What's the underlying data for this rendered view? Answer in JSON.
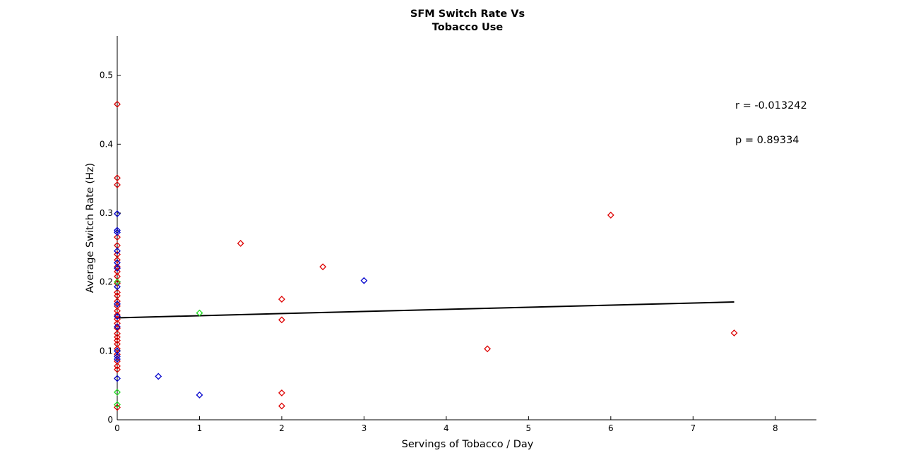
{
  "chart_data": {
    "type": "scatter",
    "title_lines": [
      "SFM Switch Rate Vs",
      "Tobacco Use"
    ],
    "xlabel": "Servings of Tobacco / Day",
    "ylabel": "Average Switch Rate (Hz)",
    "xlim": [
      0,
      8.5
    ],
    "ylim": [
      0,
      0.557
    ],
    "xticks": [
      0,
      1,
      2,
      3,
      4,
      5,
      6,
      7,
      8
    ],
    "yticks": [
      0,
      0.1,
      0.2,
      0.3,
      0.4,
      0.5
    ],
    "xtick_labels": [
      "0",
      "1",
      "2",
      "3",
      "4",
      "5",
      "6",
      "7",
      "8"
    ],
    "ytick_labels": [
      "0",
      "0.1",
      "0.2",
      "0.3",
      "0.4",
      "0.5"
    ],
    "grid": false,
    "annotations": [
      "r = -0.013242",
      "p = 0.89334"
    ],
    "trend_line": {
      "x": [
        0,
        7.5
      ],
      "y": [
        0.148,
        0.171
      ],
      "color": "#000000"
    },
    "series": [
      {
        "color": "#dd0000",
        "marker": "diamond",
        "points": [
          [
            0,
            0.458
          ],
          [
            0,
            0.351
          ],
          [
            0,
            0.341
          ],
          [
            0,
            0.265
          ],
          [
            0,
            0.253
          ],
          [
            0,
            0.24
          ],
          [
            0,
            0.232
          ],
          [
            0,
            0.222
          ],
          [
            0,
            0.215
          ],
          [
            0,
            0.208
          ],
          [
            0,
            0.198
          ],
          [
            0,
            0.185
          ],
          [
            0,
            0.18
          ],
          [
            0,
            0.172
          ],
          [
            0,
            0.165
          ],
          [
            0,
            0.158
          ],
          [
            0,
            0.152
          ],
          [
            0,
            0.146
          ],
          [
            0,
            0.14
          ],
          [
            0,
            0.133
          ],
          [
            0,
            0.125
          ],
          [
            0,
            0.12
          ],
          [
            0,
            0.115
          ],
          [
            0,
            0.11
          ],
          [
            0,
            0.103
          ],
          [
            0,
            0.095
          ],
          [
            0,
            0.085
          ],
          [
            0,
            0.078
          ],
          [
            0,
            0.073
          ],
          [
            0,
            0.018
          ],
          [
            1.5,
            0.256
          ],
          [
            2,
            0.175
          ],
          [
            2,
            0.145
          ],
          [
            2,
            0.039
          ],
          [
            2,
            0.02
          ],
          [
            2.5,
            0.222
          ],
          [
            4.5,
            0.103
          ],
          [
            6,
            0.297
          ],
          [
            7.5,
            0.126
          ]
        ]
      },
      {
        "color": "#0000cc",
        "marker": "diamond",
        "points": [
          [
            0,
            0.299
          ],
          [
            0,
            0.275
          ],
          [
            0,
            0.272
          ],
          [
            0,
            0.245
          ],
          [
            0,
            0.228
          ],
          [
            0,
            0.22
          ],
          [
            0,
            0.193
          ],
          [
            0,
            0.168
          ],
          [
            0,
            0.15
          ],
          [
            0,
            0.135
          ],
          [
            0,
            0.1
          ],
          [
            0,
            0.092
          ],
          [
            0,
            0.088
          ],
          [
            0,
            0.06
          ],
          [
            0.5,
            0.063
          ],
          [
            1,
            0.036
          ],
          [
            3,
            0.202
          ]
        ]
      },
      {
        "color": "#22dd22",
        "marker": "diamond",
        "points": [
          [
            0,
            0.2
          ],
          [
            0,
            0.04
          ],
          [
            0,
            0.022
          ],
          [
            1,
            0.155
          ]
        ]
      }
    ]
  }
}
